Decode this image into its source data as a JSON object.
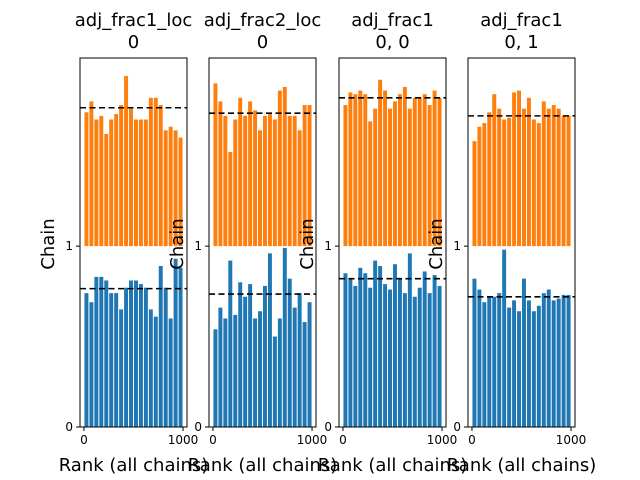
{
  "chart_data": [
    {
      "type": "bar",
      "title": [
        "adj_frac1_loc",
        "0"
      ],
      "xlabel": "Rank (all chains)",
      "ylabel": "Chain",
      "xlim": [
        -40,
        1040
      ],
      "ylim": [
        0,
        2.04
      ],
      "xticks": [
        "0",
        "1000"
      ],
      "yticks": [
        "0",
        "1"
      ],
      "reference_lines": [
        0.765,
        1.765
      ],
      "series": [
        {
          "color": "#1f77b4",
          "base": 0,
          "bin_width": 50,
          "x": [
            0,
            50,
            100,
            150,
            200,
            250,
            300,
            350,
            400,
            450,
            500,
            550,
            600,
            650,
            700,
            750,
            800,
            850,
            900,
            950
          ],
          "values": [
            0.74,
            0.69,
            0.83,
            0.83,
            0.81,
            0.74,
            0.74,
            0.65,
            0.77,
            0.81,
            0.81,
            0.79,
            0.77,
            0.65,
            0.61,
            0.89,
            0.77,
            0.6,
            0.93,
            0.88
          ]
        },
        {
          "color": "#ff7f0e",
          "base": 1,
          "bin_width": 50,
          "x": [
            0,
            50,
            100,
            150,
            200,
            250,
            300,
            350,
            400,
            450,
            500,
            550,
            600,
            650,
            700,
            750,
            800,
            850,
            900,
            950
          ],
          "values": [
            1.74,
            1.8,
            1.7,
            1.72,
            1.62,
            1.7,
            1.73,
            1.78,
            1.94,
            1.76,
            1.7,
            1.7,
            1.7,
            1.82,
            1.82,
            1.78,
            1.64,
            1.66,
            1.64,
            1.6
          ]
        }
      ]
    },
    {
      "type": "bar",
      "title": [
        "adj_frac2_loc",
        "0"
      ],
      "xlabel": "Rank (all chains)",
      "ylabel": "Chain",
      "xlim": [
        -40,
        1040
      ],
      "ylim": [
        0,
        2.04
      ],
      "xticks": [
        "0",
        "1000"
      ],
      "yticks": [
        "0",
        "1"
      ],
      "reference_lines": [
        0.735,
        1.735
      ],
      "series": [
        {
          "color": "#1f77b4",
          "base": 0,
          "bin_width": 50,
          "x": [
            0,
            50,
            100,
            150,
            200,
            250,
            300,
            350,
            400,
            450,
            500,
            550,
            600,
            650,
            700,
            750,
            800,
            850,
            900,
            950
          ],
          "values": [
            0.54,
            0.66,
            0.6,
            0.92,
            0.62,
            0.8,
            0.72,
            0.79,
            0.6,
            0.64,
            0.78,
            0.96,
            0.5,
            0.6,
            0.99,
            0.82,
            0.66,
            0.74,
            0.58,
            0.69
          ]
        },
        {
          "color": "#ff7f0e",
          "base": 1,
          "bin_width": 50,
          "x": [
            0,
            50,
            100,
            150,
            200,
            250,
            300,
            350,
            400,
            450,
            500,
            550,
            600,
            650,
            700,
            750,
            800,
            850,
            900,
            950
          ],
          "values": [
            1.9,
            1.8,
            1.72,
            1.52,
            1.7,
            1.82,
            1.72,
            1.8,
            1.75,
            1.64,
            1.72,
            1.73,
            1.7,
            1.86,
            1.88,
            1.72,
            1.72,
            1.64,
            1.78,
            1.78
          ]
        }
      ]
    },
    {
      "type": "bar",
      "title": [
        "adj_frac1",
        "0, 0"
      ],
      "xlabel": "Rank (all chains)",
      "ylabel": "Chain",
      "xlim": [
        -40,
        1040
      ],
      "ylim": [
        0,
        2.04
      ],
      "xticks": [
        "0",
        "1000"
      ],
      "yticks": [
        "0",
        "1"
      ],
      "reference_lines": [
        0.82,
        1.82
      ],
      "series": [
        {
          "color": "#1f77b4",
          "base": 0,
          "bin_width": 50,
          "x": [
            0,
            50,
            100,
            150,
            200,
            250,
            300,
            350,
            400,
            450,
            500,
            550,
            600,
            650,
            700,
            750,
            800,
            850,
            900,
            950
          ],
          "values": [
            0.85,
            0.82,
            0.78,
            0.88,
            0.85,
            0.77,
            0.92,
            0.89,
            0.79,
            0.76,
            0.9,
            0.82,
            0.74,
            0.96,
            0.72,
            0.77,
            0.86,
            0.74,
            0.84,
            0.78
          ]
        },
        {
          "color": "#ff7f0e",
          "base": 1,
          "bin_width": 50,
          "x": [
            0,
            50,
            100,
            150,
            200,
            250,
            300,
            350,
            400,
            450,
            500,
            550,
            600,
            650,
            700,
            750,
            800,
            850,
            900,
            950
          ],
          "values": [
            1.78,
            1.85,
            1.84,
            1.86,
            1.84,
            1.69,
            1.76,
            1.92,
            1.86,
            1.76,
            1.8,
            1.84,
            1.88,
            1.76,
            1.82,
            1.82,
            1.84,
            1.78,
            1.86,
            1.82
          ]
        }
      ]
    },
    {
      "type": "bar",
      "title": [
        "adj_frac1",
        "0, 1"
      ],
      "xlabel": "Rank (all chains)",
      "ylabel": "Chain",
      "xlim": [
        -40,
        1040
      ],
      "ylim": [
        0,
        2.04
      ],
      "xticks": [
        "0",
        "1000"
      ],
      "yticks": [
        "0",
        "1"
      ],
      "reference_lines": [
        0.72,
        1.72
      ],
      "series": [
        {
          "color": "#1f77b4",
          "base": 0,
          "bin_width": 50,
          "x": [
            0,
            50,
            100,
            150,
            200,
            250,
            300,
            350,
            400,
            450,
            500,
            550,
            600,
            650,
            700,
            750,
            800,
            850,
            900,
            950
          ],
          "values": [
            0.82,
            0.76,
            0.69,
            0.72,
            0.72,
            0.74,
            0.98,
            0.66,
            0.7,
            0.64,
            0.82,
            0.7,
            0.64,
            0.67,
            0.74,
            0.76,
            0.7,
            0.71,
            0.73,
            0.73
          ]
        },
        {
          "color": "#ff7f0e",
          "base": 1,
          "bin_width": 50,
          "x": [
            0,
            50,
            100,
            150,
            200,
            250,
            300,
            350,
            400,
            450,
            500,
            550,
            600,
            650,
            700,
            750,
            800,
            850,
            900,
            950
          ],
          "values": [
            1.58,
            1.66,
            1.68,
            1.74,
            1.84,
            1.76,
            1.7,
            1.71,
            1.85,
            1.86,
            1.76,
            1.82,
            1.7,
            1.68,
            1.8,
            1.76,
            1.78,
            1.76,
            1.72,
            1.72
          ]
        }
      ]
    }
  ]
}
